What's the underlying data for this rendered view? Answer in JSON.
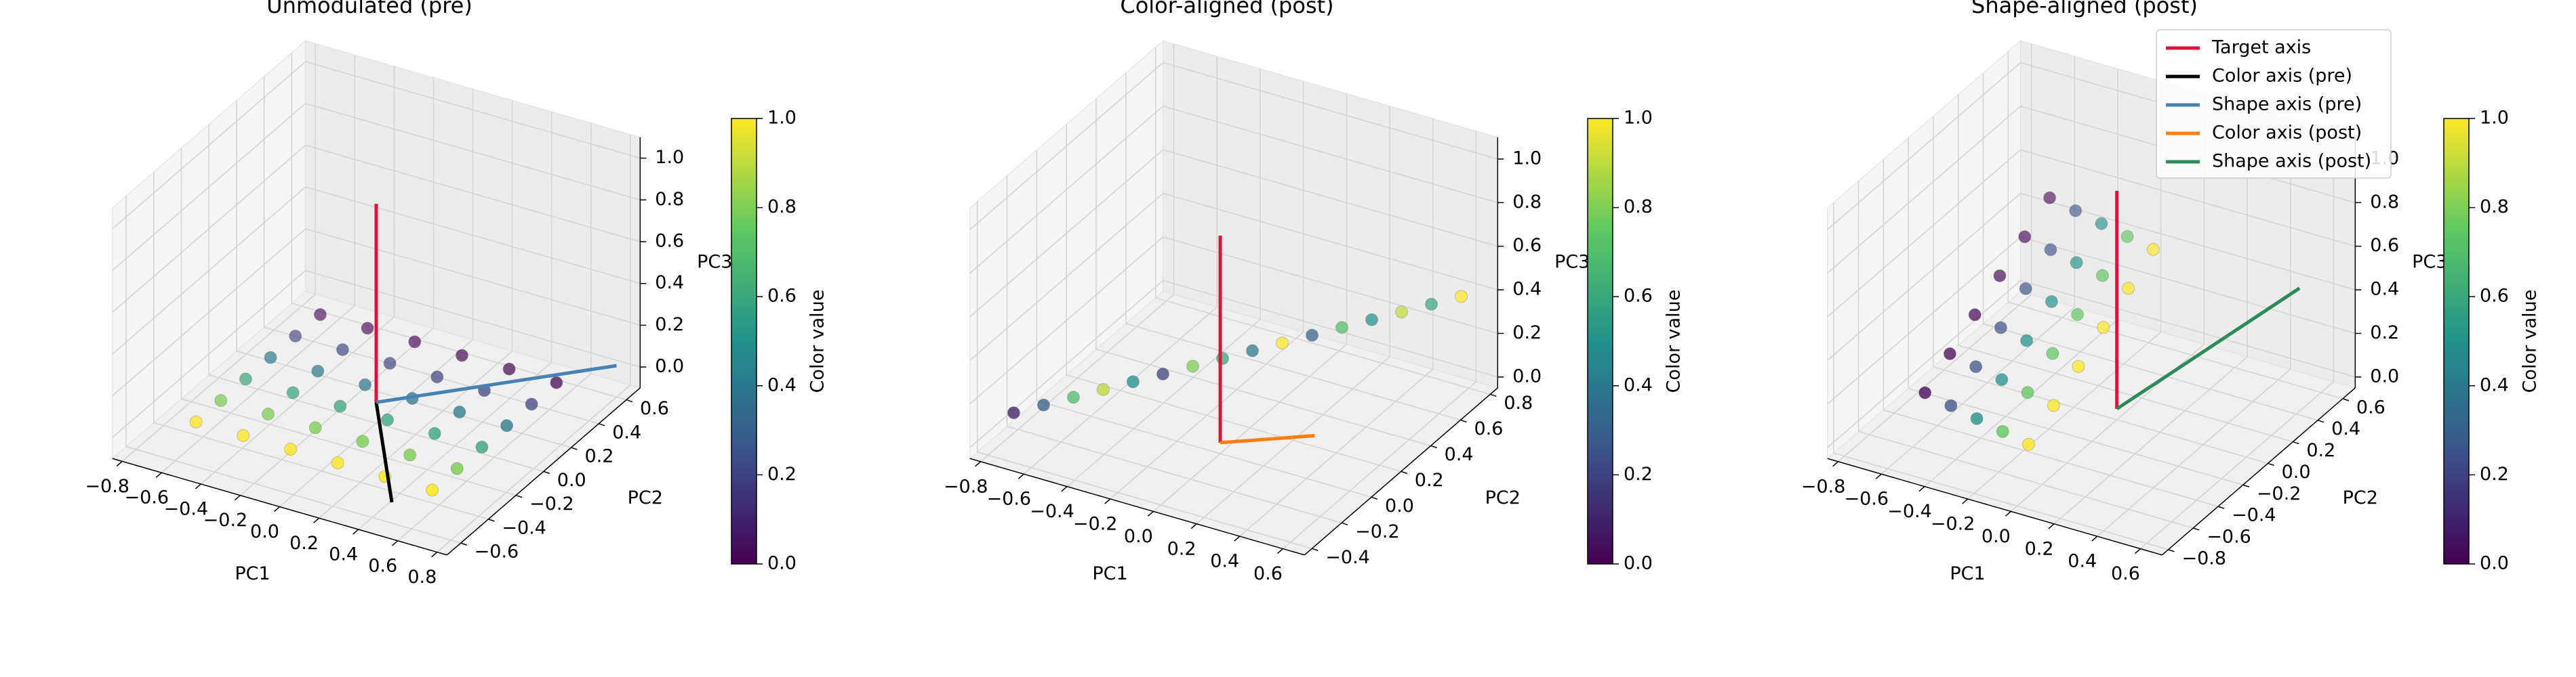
{
  "chart_data": [
    {
      "type": "scatter3d",
      "title": "Unmodulated (pre)",
      "xlabel": "PC1",
      "ylabel": "PC2",
      "zlabel": "PC3",
      "xlim": [
        -0.85,
        0.85
      ],
      "ylim": [
        -0.7,
        0.7
      ],
      "zlim": [
        -0.1,
        1.1
      ],
      "xticks": [
        {
          "value": -0.8,
          "label": "−0.8"
        },
        {
          "value": -0.6,
          "label": "−0.6"
        },
        {
          "value": -0.4,
          "label": "−0.4"
        },
        {
          "value": -0.2,
          "label": "−0.2"
        },
        {
          "value": 0,
          "label": "0.0"
        },
        {
          "value": 0.2,
          "label": "0.2"
        },
        {
          "value": 0.4,
          "label": "0.4"
        },
        {
          "value": 0.6,
          "label": "0.6"
        },
        {
          "value": 0.8,
          "label": "0.8"
        }
      ],
      "yticks": [
        {
          "value": -0.6,
          "label": "−0.6"
        },
        {
          "value": -0.4,
          "label": "−0.4"
        },
        {
          "value": -0.2,
          "label": "−0.2"
        },
        {
          "value": 0,
          "label": "0.0"
        },
        {
          "value": 0.2,
          "label": "0.2"
        },
        {
          "value": 0.4,
          "label": "0.4"
        },
        {
          "value": 0.6,
          "label": "0.6"
        }
      ],
      "zticks": [
        {
          "value": 0,
          "label": "0.0"
        },
        {
          "value": 0.2,
          "label": "0.2"
        },
        {
          "value": 0.4,
          "label": "0.4"
        },
        {
          "value": 0.6,
          "label": "0.6"
        },
        {
          "value": 0.8,
          "label": "0.8"
        },
        {
          "value": 1,
          "label": "1.0"
        }
      ],
      "points": {
        "x": [
          -0.6,
          -0.36,
          -0.12,
          0.12,
          0.36,
          0.6,
          -0.6,
          -0.36,
          -0.12,
          0.12,
          0.36,
          0.6,
          -0.6,
          -0.36,
          -0.12,
          0.12,
          0.36,
          0.6,
          -0.6,
          -0.36,
          -0.12,
          0.12,
          0.36,
          0.6,
          -0.6,
          -0.36,
          -0.12,
          0.12,
          0.36,
          0.6,
          -0.6,
          -0.36,
          -0.12,
          0.12,
          0.36,
          0.6
        ],
        "y": [
          0.45,
          0.45,
          0.45,
          0.45,
          0.45,
          0.45,
          0.27,
          0.27,
          0.27,
          0.27,
          0.27,
          0.27,
          0.09,
          0.09,
          0.09,
          0.09,
          0.09,
          0.09,
          -0.09,
          -0.09,
          -0.09,
          -0.09,
          -0.09,
          -0.09,
          -0.27,
          -0.27,
          -0.27,
          -0.27,
          -0.27,
          -0.27,
          -0.45,
          -0.45,
          -0.45,
          -0.45,
          -0.45,
          -0.45
        ],
        "z": [
          0,
          0,
          0,
          0,
          0,
          0,
          0,
          0,
          0,
          0,
          0,
          0,
          0,
          0,
          0,
          0,
          0,
          0,
          0,
          0,
          0,
          0,
          0,
          0,
          0,
          0,
          0,
          0,
          0,
          0,
          0,
          0,
          0,
          0,
          0,
          0
        ],
        "c": [
          0,
          0,
          0,
          0,
          0,
          0,
          0.2,
          0.2,
          0.2,
          0.2,
          0.2,
          0.2,
          0.4,
          0.4,
          0.4,
          0.4,
          0.4,
          0.4,
          0.6,
          0.6,
          0.6,
          0.6,
          0.6,
          0.6,
          0.8,
          0.8,
          0.8,
          0.8,
          0.8,
          0.8,
          1,
          1,
          1,
          1,
          1,
          1
        ]
      },
      "lines": [
        {
          "color": "#dc143c",
          "x": [
            0,
            0
          ],
          "y": [
            0,
            0
          ],
          "z": [
            0,
            0.95
          ]
        },
        {
          "color": "#000000",
          "x": [
            0,
            0.5
          ],
          "y": [
            0,
            -0.6
          ],
          "z": [
            0,
            0
          ]
        },
        {
          "color": "#4682b4",
          "x": [
            0,
            0.8
          ],
          "y": [
            0,
            0.6
          ],
          "z": [
            0,
            0.05
          ]
        }
      ],
      "colormap": "viridis",
      "clim": [
        0,
        1
      ],
      "cticks": [
        {
          "value": 0,
          "label": "0.0"
        },
        {
          "value": 0.2,
          "label": "0.2"
        },
        {
          "value": 0.4,
          "label": "0.4"
        },
        {
          "value": 0.6,
          "label": "0.6"
        },
        {
          "value": 0.8,
          "label": "0.8"
        },
        {
          "value": 1,
          "label": "1.0"
        }
      ],
      "colorbar_label": "Color value"
    },
    {
      "type": "scatter3d",
      "title": "Color-aligned (post)",
      "xlabel": "PC1",
      "ylabel": "PC2",
      "zlabel": "PC3",
      "xlim": [
        -0.85,
        0.7
      ],
      "ylim": [
        -0.45,
        0.85
      ],
      "zlim": [
        -0.05,
        1.1
      ],
      "xticks": [
        {
          "value": -0.8,
          "label": "−0.8"
        },
        {
          "value": -0.6,
          "label": "−0.6"
        },
        {
          "value": -0.4,
          "label": "−0.4"
        },
        {
          "value": -0.2,
          "label": "−0.2"
        },
        {
          "value": 0,
          "label": "0.0"
        },
        {
          "value": 0.2,
          "label": "0.2"
        },
        {
          "value": 0.4,
          "label": "0.4"
        },
        {
          "value": 0.6,
          "label": "0.6"
        }
      ],
      "yticks": [
        {
          "value": -0.4,
          "label": "−0.4"
        },
        {
          "value": -0.2,
          "label": "−0.2"
        },
        {
          "value": 0,
          "label": "0.0"
        },
        {
          "value": 0.2,
          "label": "0.2"
        },
        {
          "value": 0.4,
          "label": "0.4"
        },
        {
          "value": 0.6,
          "label": "0.6"
        },
        {
          "value": 0.8,
          "label": "0.8"
        }
      ],
      "zticks": [
        {
          "value": 0,
          "label": "0.0"
        },
        {
          "value": 0.2,
          "label": "0.2"
        },
        {
          "value": 0.4,
          "label": "0.4"
        },
        {
          "value": 0.6,
          "label": "0.6"
        },
        {
          "value": 0.8,
          "label": "0.8"
        },
        {
          "value": 1,
          "label": "1.0"
        }
      ],
      "points": {
        "x": [
          -0.75,
          -0.66,
          -0.57,
          -0.48,
          -0.39,
          -0.3,
          -0.21,
          -0.12,
          -0.03,
          0.06,
          0.15,
          0.24,
          0.33,
          0.42,
          0.51,
          0.6
        ],
        "y": [
          -0.3,
          -0.23,
          -0.16,
          -0.09,
          -0.02,
          0.05,
          0.12,
          0.19,
          0.26,
          0.33,
          0.4,
          0.47,
          0.54,
          0.61,
          0.68,
          0.75
        ],
        "z": [
          0.1,
          0.12,
          0.14,
          0.16,
          0.18,
          0.2,
          0.22,
          0.24,
          0.26,
          0.28,
          0.3,
          0.32,
          0.34,
          0.36,
          0.38,
          0.4
        ],
        "c": [
          0.1,
          0.3,
          0.7,
          0.9,
          0.5,
          0.2,
          0.8,
          0.6,
          0.4,
          1,
          0.3,
          0.7,
          0.5,
          0.9,
          0.6,
          1
        ]
      },
      "lines": [
        {
          "color": "#dc143c",
          "x": [
            0,
            0
          ],
          "y": [
            0,
            0
          ],
          "z": [
            0,
            0.95
          ]
        },
        {
          "color": "#ff7f0e",
          "x": [
            0,
            0.3
          ],
          "y": [
            0,
            0.2
          ],
          "z": [
            0,
            0
          ]
        }
      ],
      "colormap": "viridis",
      "clim": [
        0,
        1
      ],
      "cticks": [
        {
          "value": 0,
          "label": "0.0"
        },
        {
          "value": 0.2,
          "label": "0.2"
        },
        {
          "value": 0.4,
          "label": "0.4"
        },
        {
          "value": 0.6,
          "label": "0.6"
        },
        {
          "value": 0.8,
          "label": "0.8"
        },
        {
          "value": 1,
          "label": "1.0"
        }
      ],
      "colorbar_label": "Color value"
    },
    {
      "type": "scatter3d",
      "title": "Shape-aligned (post)",
      "xlabel": "PC1",
      "ylabel": "PC2",
      "zlabel": "PC3",
      "xlim": [
        -0.85,
        0.7
      ],
      "ylim": [
        -0.85,
        0.7
      ],
      "zlim": [
        -0.05,
        1.1
      ],
      "xticks": [
        {
          "value": -0.8,
          "label": "−0.8"
        },
        {
          "value": -0.6,
          "label": "−0.6"
        },
        {
          "value": -0.4,
          "label": "−0.4"
        },
        {
          "value": -0.2,
          "label": "−0.2"
        },
        {
          "value": 0,
          "label": "0.0"
        },
        {
          "value": 0.2,
          "label": "0.2"
        },
        {
          "value": 0.4,
          "label": "0.4"
        },
        {
          "value": 0.6,
          "label": "0.6"
        }
      ],
      "yticks": [
        {
          "value": -0.8,
          "label": "−0.8"
        },
        {
          "value": -0.6,
          "label": "−0.6"
        },
        {
          "value": -0.4,
          "label": "−0.4"
        },
        {
          "value": -0.2,
          "label": "−0.2"
        },
        {
          "value": 0,
          "label": "0.0"
        },
        {
          "value": 0.2,
          "label": "0.2"
        },
        {
          "value": 0.4,
          "label": "0.4"
        },
        {
          "value": 0.6,
          "label": "0.6"
        }
      ],
      "zticks": [
        {
          "value": 0,
          "label": "0.0"
        },
        {
          "value": 0.2,
          "label": "0.2"
        },
        {
          "value": 0.4,
          "label": "0.4"
        },
        {
          "value": 0.6,
          "label": "0.6"
        },
        {
          "value": 0.8,
          "label": "0.8"
        },
        {
          "value": 1,
          "label": "1.0"
        }
      ],
      "points": {
        "x": [
          -0.6,
          -0.48,
          -0.36,
          -0.24,
          -0.12,
          -0.6,
          -0.48,
          -0.36,
          -0.24,
          -0.12,
          -0.6,
          -0.48,
          -0.36,
          -0.24,
          -0.12,
          -0.6,
          -0.48,
          -0.36,
          -0.24,
          -0.12,
          -0.6,
          -0.48,
          -0.36,
          -0.24,
          -0.12,
          -0.6,
          -0.48,
          -0.36,
          -0.24,
          -0.12
        ],
        "y": [
          -0.5,
          -0.5,
          -0.5,
          -0.5,
          -0.5,
          -0.3,
          -0.3,
          -0.3,
          -0.3,
          -0.3,
          -0.1,
          -0.1,
          -0.1,
          -0.1,
          -0.1,
          0.1,
          0.1,
          0.1,
          0.1,
          0.1,
          0.3,
          0.3,
          0.3,
          0.3,
          0.3,
          0.5,
          0.5,
          0.5,
          0.5,
          0.5
        ],
        "z": [
          0.15,
          0.125,
          0.1,
          0.075,
          0.05,
          0.23,
          0.205,
          0.18,
          0.155,
          0.13,
          0.31,
          0.285,
          0.26,
          0.235,
          0.21,
          0.39,
          0.365,
          0.34,
          0.315,
          0.29,
          0.47,
          0.445,
          0.42,
          0.395,
          0.37,
          0.55,
          0.525,
          0.5,
          0.475,
          0.45
        ],
        "c": [
          0,
          0.25,
          0.5,
          0.75,
          1,
          0,
          0.25,
          0.5,
          0.75,
          1,
          0,
          0.25,
          0.5,
          0.75,
          1,
          0,
          0.25,
          0.5,
          0.75,
          1,
          0,
          0.25,
          0.5,
          0.75,
          1,
          0,
          0.25,
          0.5,
          0.75,
          1
        ]
      },
      "lines": [
        {
          "color": "#dc143c",
          "x": [
            0,
            0
          ],
          "y": [
            0,
            0
          ],
          "z": [
            0,
            1
          ]
        },
        {
          "color": "#2e8b57",
          "x": [
            0,
            0.5
          ],
          "y": [
            0,
            0.6
          ],
          "z": [
            0,
            0.4
          ]
        }
      ],
      "colormap": "viridis",
      "clim": [
        0,
        1
      ],
      "cticks": [
        {
          "value": 0,
          "label": "0.0"
        },
        {
          "value": 0.2,
          "label": "0.2"
        },
        {
          "value": 0.4,
          "label": "0.4"
        },
        {
          "value": 0.6,
          "label": "0.6"
        },
        {
          "value": 0.8,
          "label": "0.8"
        },
        {
          "value": 1,
          "label": "1.0"
        }
      ],
      "colorbar_label": "Color value",
      "legend": {
        "loc": "upper right",
        "entries": [
          {
            "name": "Target axis",
            "color": "#dc143c"
          },
          {
            "name": "Color axis (pre)",
            "color": "#000000"
          },
          {
            "name": "Shape axis (pre)",
            "color": "#4682b4"
          },
          {
            "name": "Color axis (post)",
            "color": "#ff7f0e"
          },
          {
            "name": "Shape axis (post)",
            "color": "#2e8b57"
          }
        ]
      }
    }
  ]
}
